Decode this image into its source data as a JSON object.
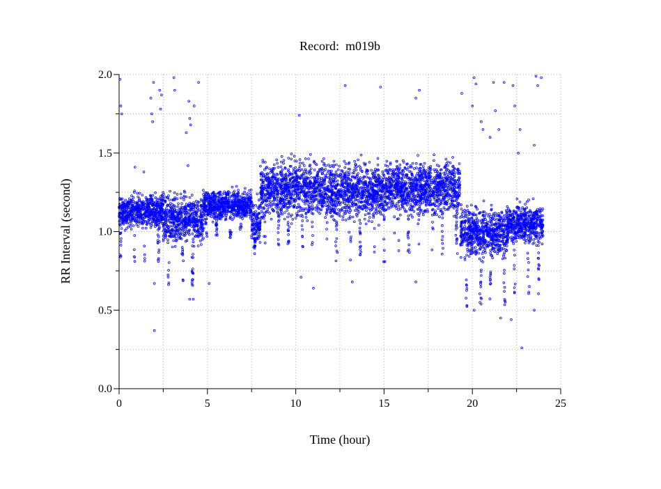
{
  "chart_data": {
    "type": "scatter",
    "title": "Record:  m019b",
    "xlabel": "Time (hour)",
    "ylabel": "RR Interval (second)",
    "xlim": [
      0,
      25
    ],
    "ylim": [
      0,
      2.0
    ],
    "xticks": [
      "0",
      "5",
      "10",
      "15",
      "20",
      "25"
    ],
    "xtick_values": [
      0,
      5,
      10,
      15,
      20,
      25
    ],
    "yticks": [
      "0.0",
      "0.5",
      "1.0",
      "1.5",
      "2.0"
    ],
    "ytick_values": [
      0,
      0.5,
      1.0,
      1.5,
      2.0
    ],
    "grid": true,
    "marker_color": "#0000ff",
    "series_note": "RR intervals approximated as segments (hour range, mean, spread) plus low dips and isolated outliers",
    "segments": [
      {
        "x0": 0.0,
        "x1": 2.5,
        "mean": 1.13,
        "spread": 0.07,
        "dip_to": 0.8
      },
      {
        "x0": 2.5,
        "x1": 4.8,
        "mean": 1.08,
        "spread": 0.1,
        "dip_to": 0.65
      },
      {
        "x0": 4.8,
        "x1": 7.5,
        "mean": 1.17,
        "spread": 0.06,
        "dip_to": 0.95
      },
      {
        "x0": 7.5,
        "x1": 8.0,
        "mean": 1.05,
        "spread": 0.1,
        "dip_to": 0.85
      },
      {
        "x0": 8.0,
        "x1": 11.5,
        "mean": 1.27,
        "spread": 0.12,
        "dip_to": 0.9
      },
      {
        "x0": 11.5,
        "x1": 15.2,
        "mean": 1.26,
        "spread": 0.12,
        "dip_to": 0.8
      },
      {
        "x0": 15.2,
        "x1": 19.3,
        "mean": 1.28,
        "spread": 0.11,
        "dip_to": 0.85
      },
      {
        "x0": 19.3,
        "x1": 22.0,
        "mean": 1.0,
        "spread": 0.1,
        "dip_to": 0.5
      },
      {
        "x0": 22.0,
        "x1": 24.0,
        "mean": 1.05,
        "spread": 0.08,
        "dip_to": 0.6
      }
    ],
    "outliers": [
      [
        0.05,
        1.97
      ],
      [
        0.1,
        1.8
      ],
      [
        0.15,
        1.75
      ],
      [
        0.9,
        1.41
      ],
      [
        1.4,
        1.38
      ],
      [
        1.8,
        1.85
      ],
      [
        1.85,
        1.75
      ],
      [
        1.9,
        1.7
      ],
      [
        1.95,
        1.95
      ],
      [
        2.0,
        0.37
      ],
      [
        2.0,
        0.67
      ],
      [
        2.3,
        1.9
      ],
      [
        2.35,
        1.78
      ],
      [
        2.4,
        1.87
      ],
      [
        3.1,
        1.98
      ],
      [
        3.15,
        1.9
      ],
      [
        3.8,
        1.63
      ],
      [
        3.9,
        1.42
      ],
      [
        3.95,
        1.83
      ],
      [
        4.0,
        1.72
      ],
      [
        4.05,
        1.68
      ],
      [
        4.0,
        0.57
      ],
      [
        4.2,
        0.57
      ],
      [
        4.25,
        1.8
      ],
      [
        4.5,
        1.95
      ],
      [
        5.1,
        0.67
      ],
      [
        10.3,
        0.71
      ],
      [
        10.2,
        1.74
      ],
      [
        11.0,
        0.64
      ],
      [
        12.8,
        1.93
      ],
      [
        13.2,
        0.68
      ],
      [
        14.8,
        1.92
      ],
      [
        16.8,
        0.68
      ],
      [
        16.8,
        1.85
      ],
      [
        17.0,
        1.9
      ],
      [
        19.4,
        1.88
      ],
      [
        20.0,
        1.8
      ],
      [
        20.1,
        1.98
      ],
      [
        20.2,
        1.94
      ],
      [
        20.1,
        0.5
      ],
      [
        20.5,
        1.7
      ],
      [
        20.6,
        1.65
      ],
      [
        21.0,
        1.6
      ],
      [
        21.2,
        1.95
      ],
      [
        21.3,
        1.77
      ],
      [
        21.5,
        1.65
      ],
      [
        21.6,
        0.45
      ],
      [
        21.8,
        1.95
      ],
      [
        22.2,
        0.44
      ],
      [
        22.3,
        1.93
      ],
      [
        22.4,
        1.8
      ],
      [
        22.6,
        1.5
      ],
      [
        22.7,
        1.65
      ],
      [
        22.8,
        0.26
      ],
      [
        23.5,
        1.55
      ],
      [
        23.5,
        0.5
      ],
      [
        23.6,
        1.99
      ],
      [
        23.7,
        1.93
      ],
      [
        23.9,
        1.98
      ]
    ]
  }
}
